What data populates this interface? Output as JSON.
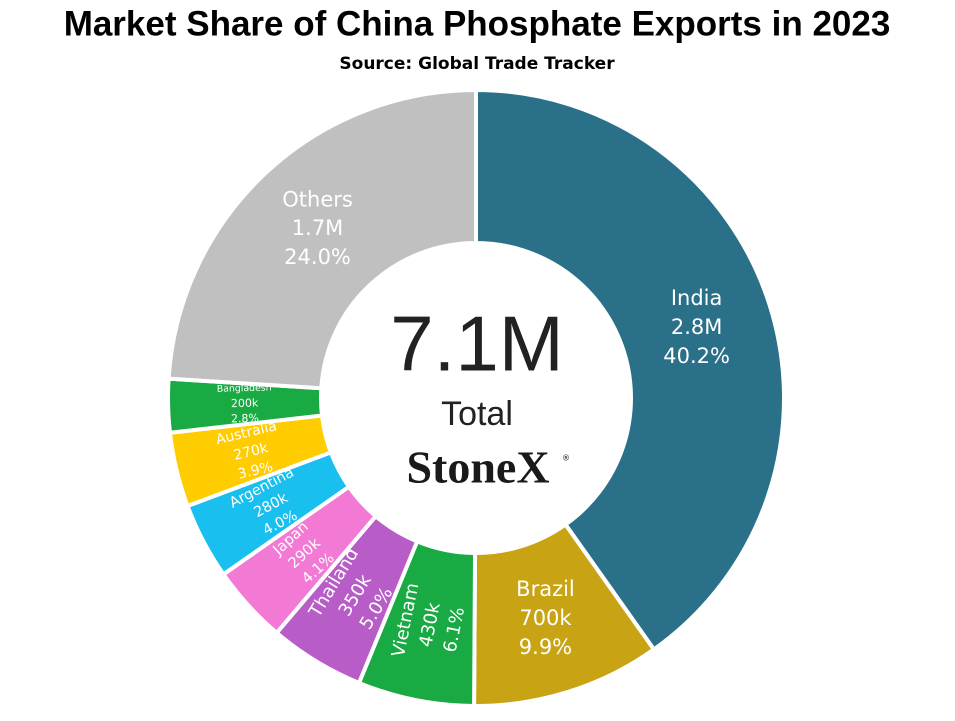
{
  "chart_data": {
    "type": "pie",
    "title": "Market Share of China Phosphate Exports in 2023",
    "subtitle": "Source: Global Trade Tracker",
    "categories": [
      "India",
      "Brazil",
      "Vietnam",
      "Thailand",
      "Japan",
      "Argentina",
      "Australia",
      "Bangladesh",
      "Others"
    ],
    "values": [
      40.2,
      9.9,
      6.1,
      5.0,
      4.1,
      4.0,
      3.9,
      2.8,
      24.0
    ],
    "value_labels": [
      "40.2%",
      "9.9%",
      "6.1%",
      "5.0%",
      "4.1%",
      "4.0%",
      "3.9%",
      "2.8%",
      "24.0%"
    ],
    "amounts": [
      2800000,
      700000,
      430000,
      350000,
      290000,
      280000,
      270000,
      200000,
      1700000
    ],
    "amount_labels": [
      "2.8M",
      "700k",
      "430k",
      "350k",
      "290k",
      "280k",
      "270k",
      "200k",
      "1.7M"
    ],
    "colors": [
      "#2a7089",
      "#c8a415",
      "#1aaa44",
      "#b85cc8",
      "#f27ad4",
      "#19c0ef",
      "#ffcc00",
      "#1aaa44",
      "#c0c0c0"
    ],
    "total": 7100000,
    "total_label": "7.1M",
    "total_caption": "Total",
    "logo": "StoneX",
    "logo_mark": "®"
  }
}
